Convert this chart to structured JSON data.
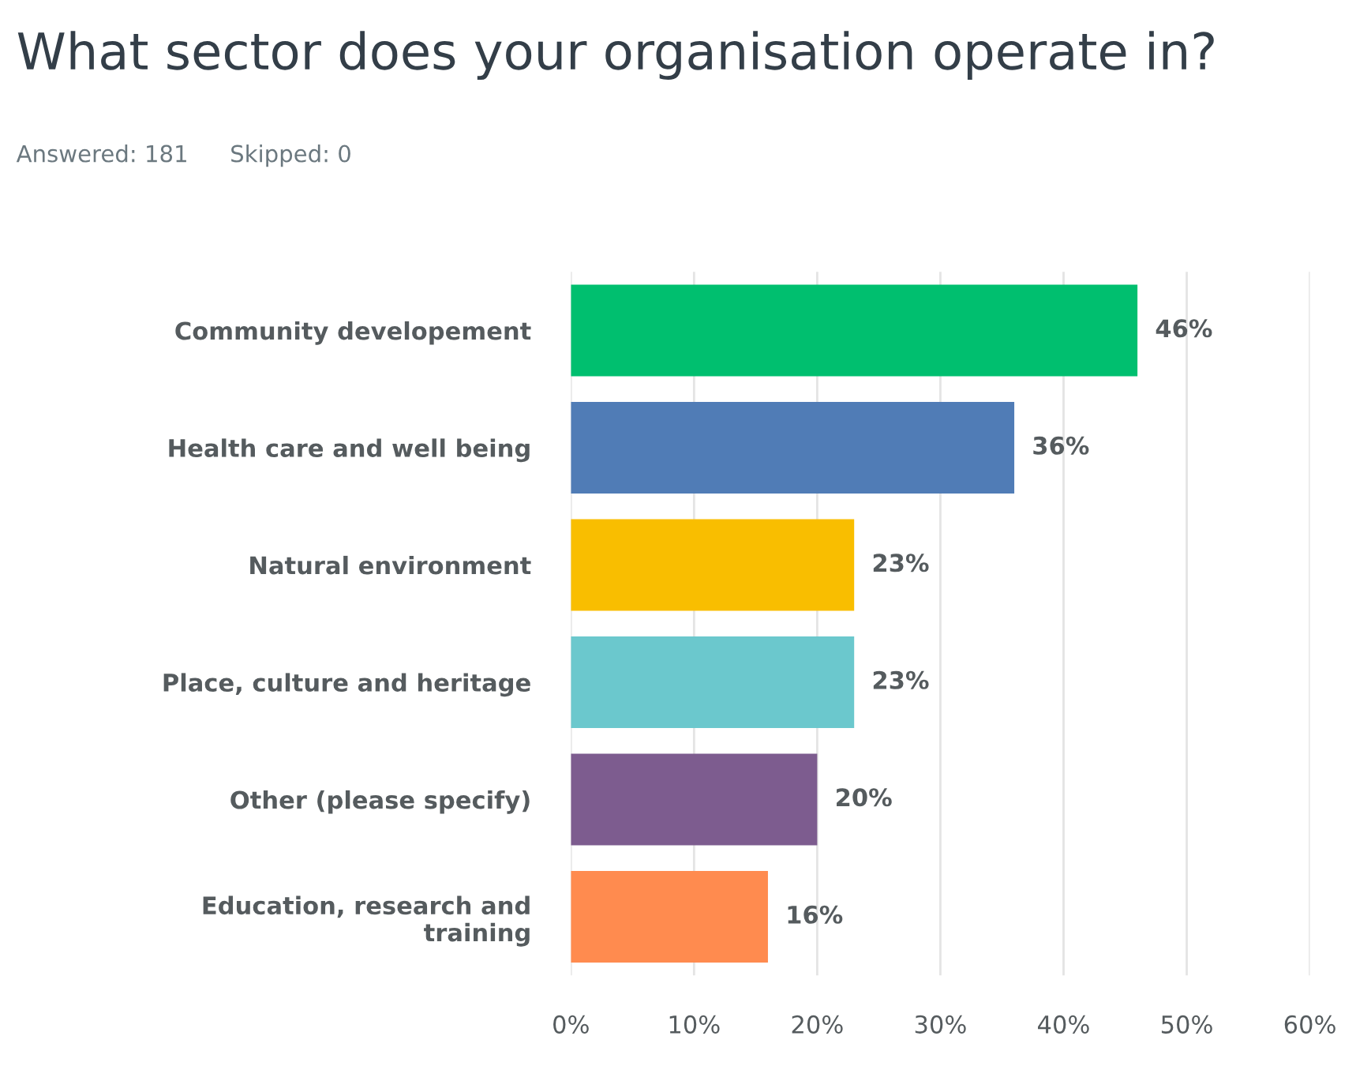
{
  "chart_data": {
    "type": "bar",
    "orientation": "horizontal",
    "title": "What sector does your organisation operate in?",
    "annotations": [
      "Answered: 181",
      "Skipped: 0"
    ],
    "categories": [
      "Community developement",
      "Health care and well being",
      "Natural environment",
      "Place, culture and heritage",
      "Other (please specify)",
      "Education, research and\ntraining"
    ],
    "values": [
      46,
      36,
      23,
      23,
      20,
      16
    ],
    "colors": [
      "#00bf6f",
      "#507cb6",
      "#f9be00",
      "#6bc8cd",
      "#7d5c8f",
      "#ff8b4f"
    ],
    "value_labels": [
      "46%",
      "36%",
      "23%",
      "23%",
      "20%",
      "16%"
    ],
    "xlim": [
      0,
      60
    ],
    "xticks": [
      {
        "value": 0,
        "label": "0%"
      },
      {
        "value": 10,
        "label": "10%"
      },
      {
        "value": 20,
        "label": "20%"
      },
      {
        "value": 30,
        "label": "30%"
      },
      {
        "value": 40,
        "label": "40%"
      },
      {
        "value": 50,
        "label": "50%"
      },
      {
        "value": 60,
        "label": "60%"
      }
    ],
    "grid": "x",
    "legend": false
  }
}
